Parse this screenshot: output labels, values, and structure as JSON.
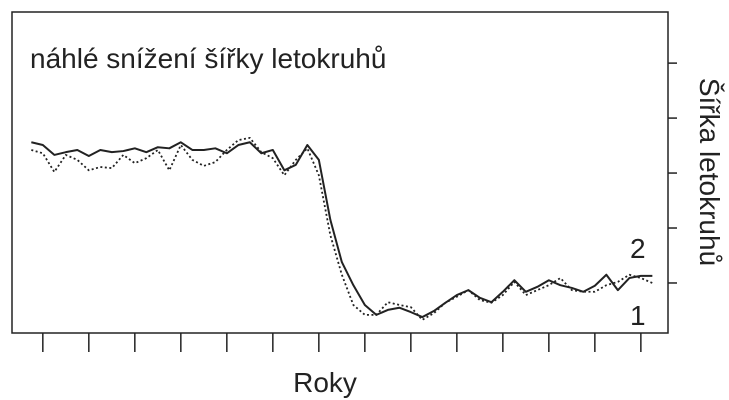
{
  "chart_data": {
    "type": "line",
    "title": "náhlé snížení šířky letokruhů",
    "xlabel": "Roky",
    "ylabel": "Šířka letokruhů",
    "annotations": [
      "2",
      "1"
    ],
    "x": [
      0.75,
      1,
      1.25,
      1.5,
      1.75,
      2,
      2.25,
      2.5,
      2.75,
      3,
      3.25,
      3.5,
      3.75,
      4,
      4.25,
      4.5,
      4.75,
      5,
      5.25,
      5.5,
      5.75,
      6,
      6.25,
      6.5,
      6.75,
      7,
      7.25,
      7.5,
      7.75,
      8,
      8.25,
      8.5,
      8.75,
      9,
      9.25,
      9.5,
      9.75,
      10,
      10.25,
      10.5,
      10.75,
      11,
      11.25,
      11.5,
      11.75,
      12,
      12.25,
      12.5,
      12.75,
      13,
      13.25,
      13.5,
      13.75,
      14,
      14.25
    ],
    "series": [
      {
        "color": "#222222",
        "style": "solid",
        "values": [
          3.56,
          3.51,
          3.33,
          3.38,
          3.42,
          3.31,
          3.42,
          3.38,
          3.4,
          3.45,
          3.38,
          3.47,
          3.45,
          3.56,
          3.42,
          3.42,
          3.45,
          3.36,
          3.51,
          3.56,
          3.36,
          3.42,
          3.05,
          3.15,
          3.51,
          3.24,
          2.15,
          1.38,
          0.96,
          0.6,
          0.42,
          0.51,
          0.55,
          0.47,
          0.38,
          0.49,
          0.64,
          0.78,
          0.87,
          0.73,
          0.65,
          0.84,
          1.05,
          0.84,
          0.93,
          1.05,
          0.96,
          0.91,
          0.84,
          0.95,
          1.15,
          0.87,
          1.09,
          1.13,
          1.13
        ]
      },
      {
        "color": "#222222",
        "style": "dotted",
        "values": [
          3.42,
          3.36,
          3.02,
          3.33,
          3.24,
          3.05,
          3.11,
          3.09,
          3.33,
          3.18,
          3.27,
          3.42,
          3.05,
          3.51,
          3.24,
          3.13,
          3.2,
          3.42,
          3.6,
          3.64,
          3.38,
          3.27,
          2.96,
          3.24,
          3.45,
          2.96,
          1.87,
          1.15,
          0.6,
          0.42,
          0.42,
          0.65,
          0.6,
          0.56,
          0.33,
          0.45,
          0.64,
          0.75,
          0.87,
          0.69,
          0.64,
          0.78,
          1.02,
          0.78,
          0.87,
          0.96,
          1.09,
          0.87,
          0.84,
          0.84,
          0.96,
          1.02,
          1.15,
          1.09,
          1.0
        ]
      }
    ],
    "xlim": [
      0.33,
      14.59
    ],
    "xticks": [
      1,
      2,
      3,
      4,
      5,
      6,
      7,
      8,
      9,
      10,
      11,
      12,
      13,
      14
    ],
    "ylim": [
      0.09,
      5.93
    ],
    "yticks": [
      1,
      2,
      3,
      4,
      5
    ],
    "grid": false
  }
}
